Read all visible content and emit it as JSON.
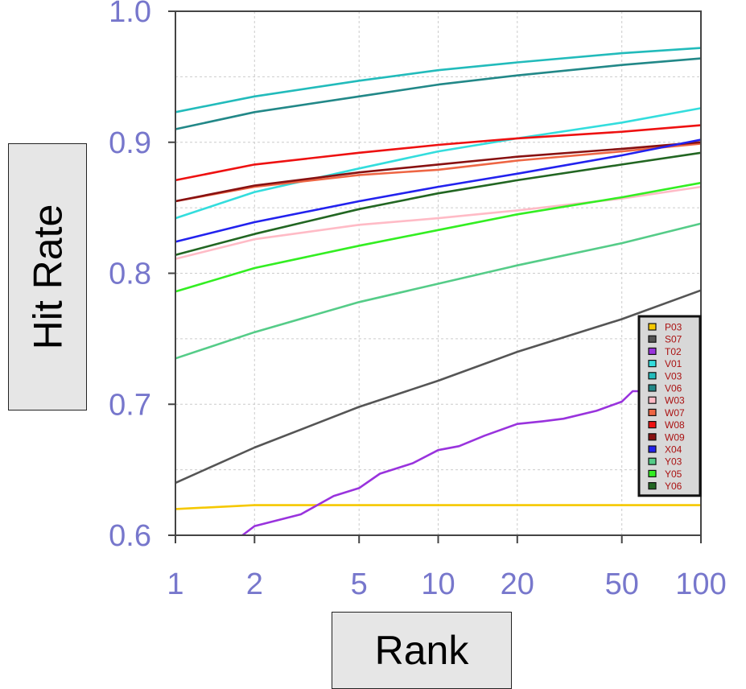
{
  "chart_data": {
    "type": "line",
    "xlabel": "Rank",
    "ylabel": "Hit Rate",
    "xscale": "log",
    "xlim": [
      1,
      100
    ],
    "ylim": [
      0.6,
      1.0
    ],
    "x_ticks": [
      1,
      2,
      5,
      10,
      20,
      50,
      100
    ],
    "x_tick_labels": [
      "1",
      "2",
      "5",
      "10",
      "20",
      "50",
      "100"
    ],
    "y_ticks": [
      0.6,
      0.7,
      0.8,
      0.9,
      1.0
    ],
    "y_tick_labels": [
      "0.6",
      "0.7",
      "0.8",
      "0.9",
      "1.0"
    ],
    "grid": true,
    "legend_position": "bottom-right",
    "tick_color": "#7777cc",
    "series": [
      {
        "name": "P03",
        "color": "#f5c800",
        "x": [
          1,
          2,
          3,
          5,
          10,
          20,
          50,
          100
        ],
        "y": [
          0.62,
          0.623,
          0.623,
          0.623,
          0.623,
          0.623,
          0.623,
          0.623
        ]
      },
      {
        "name": "S07",
        "color": "#555555",
        "x": [
          1,
          2,
          5,
          10,
          20,
          50,
          100
        ],
        "y": [
          0.64,
          0.667,
          0.698,
          0.718,
          0.74,
          0.765,
          0.787
        ]
      },
      {
        "name": "T02",
        "color": "#9933dd",
        "x": [
          1.8,
          2,
          3,
          4,
          5,
          6,
          8,
          10,
          12,
          15,
          20,
          25,
          30,
          40,
          50,
          55,
          60,
          70,
          80,
          100
        ],
        "y": [
          0.6,
          0.607,
          0.616,
          0.63,
          0.636,
          0.647,
          0.655,
          0.665,
          0.668,
          0.676,
          0.685,
          0.687,
          0.689,
          0.695,
          0.702,
          0.71,
          0.71,
          0.72,
          0.725,
          0.73
        ]
      },
      {
        "name": "V01",
        "color": "#33dddd",
        "x": [
          1,
          2,
          5,
          10,
          20,
          50,
          100
        ],
        "y": [
          0.842,
          0.862,
          0.88,
          0.893,
          0.903,
          0.915,
          0.926
        ]
      },
      {
        "name": "V03",
        "color": "#22bbbb",
        "x": [
          1,
          2,
          5,
          10,
          20,
          50,
          100
        ],
        "y": [
          0.923,
          0.935,
          0.947,
          0.955,
          0.961,
          0.968,
          0.972
        ]
      },
      {
        "name": "V06",
        "color": "#228888",
        "x": [
          1,
          2,
          5,
          10,
          20,
          50,
          100
        ],
        "y": [
          0.91,
          0.923,
          0.935,
          0.944,
          0.951,
          0.959,
          0.964
        ]
      },
      {
        "name": "W03",
        "color": "#ffbbc6",
        "x": [
          1,
          2,
          5,
          10,
          20,
          50,
          100
        ],
        "y": [
          0.811,
          0.826,
          0.837,
          0.842,
          0.848,
          0.857,
          0.866
        ]
      },
      {
        "name": "W07",
        "color": "#ee6644",
        "x": [
          1,
          2,
          5,
          10,
          20,
          50,
          100
        ],
        "y": [
          0.855,
          0.866,
          0.875,
          0.879,
          0.886,
          0.893,
          0.899
        ]
      },
      {
        "name": "W08",
        "color": "#ee1111",
        "x": [
          1,
          2,
          5,
          10,
          20,
          50,
          100
        ],
        "y": [
          0.871,
          0.883,
          0.892,
          0.898,
          0.903,
          0.908,
          0.913
        ]
      },
      {
        "name": "W09",
        "color": "#881111",
        "x": [
          1,
          2,
          5,
          10,
          20,
          50,
          100
        ],
        "y": [
          0.855,
          0.867,
          0.877,
          0.883,
          0.889,
          0.895,
          0.9
        ]
      },
      {
        "name": "X04",
        "color": "#2222ee",
        "x": [
          1,
          2,
          5,
          10,
          20,
          50,
          100
        ],
        "y": [
          0.824,
          0.839,
          0.855,
          0.866,
          0.876,
          0.89,
          0.902
        ]
      },
      {
        "name": "Y03",
        "color": "#55cc88",
        "x": [
          1,
          2,
          5,
          10,
          20,
          50,
          100
        ],
        "y": [
          0.735,
          0.755,
          0.778,
          0.792,
          0.806,
          0.823,
          0.838
        ]
      },
      {
        "name": "Y05",
        "color": "#33ee22",
        "x": [
          1,
          2,
          5,
          10,
          20,
          50,
          100
        ],
        "y": [
          0.786,
          0.804,
          0.821,
          0.833,
          0.845,
          0.858,
          0.869
        ]
      },
      {
        "name": "Y06",
        "color": "#226622",
        "x": [
          1,
          2,
          5,
          10,
          20,
          50,
          100
        ],
        "y": [
          0.814,
          0.83,
          0.849,
          0.861,
          0.871,
          0.883,
          0.892
        ]
      }
    ]
  }
}
